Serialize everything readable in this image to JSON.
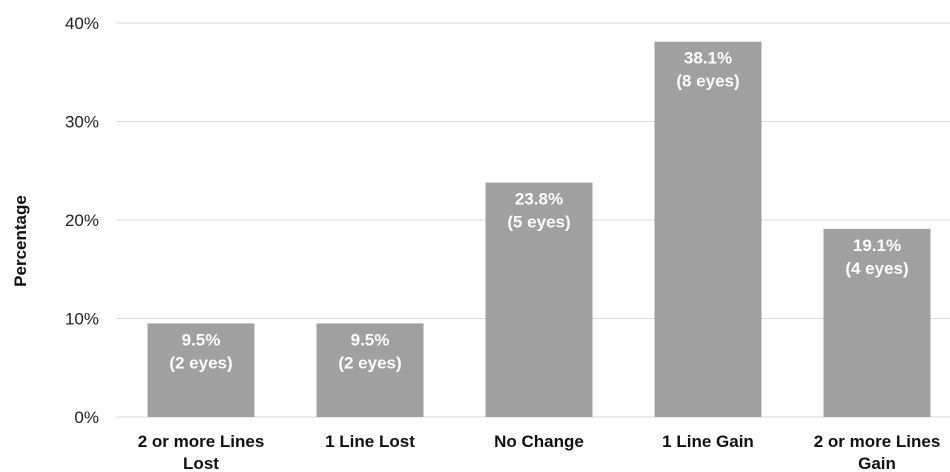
{
  "chart_data": {
    "type": "bar",
    "title": "",
    "xlabel": "",
    "ylabel": "Percentage",
    "ylim": [
      0,
      40
    ],
    "yticks": [
      "0%",
      "10%",
      "20%",
      "30%",
      "40%"
    ],
    "ytick_values": [
      0,
      10,
      20,
      30,
      40
    ],
    "grid": true,
    "legend": "none",
    "bar_color": "#a0a0a0",
    "gridline_color": "#d9d9d9",
    "categories": [
      [
        "2 or more Lines",
        "Lost"
      ],
      [
        "1 Line Lost"
      ],
      [
        "No Change"
      ],
      [
        "1 Line Gain"
      ],
      [
        "2 or more Lines",
        "Gain"
      ]
    ],
    "values": [
      9.5,
      9.5,
      23.8,
      38.1,
      19.1
    ],
    "data_labels": [
      [
        "9.5%",
        "(2 eyes)"
      ],
      [
        "9.5%",
        "(2 eyes)"
      ],
      [
        "23.8%",
        "(5 eyes)"
      ],
      [
        "38.1%",
        "(8 eyes)"
      ],
      [
        "19.1%",
        "(4 eyes)"
      ]
    ]
  }
}
